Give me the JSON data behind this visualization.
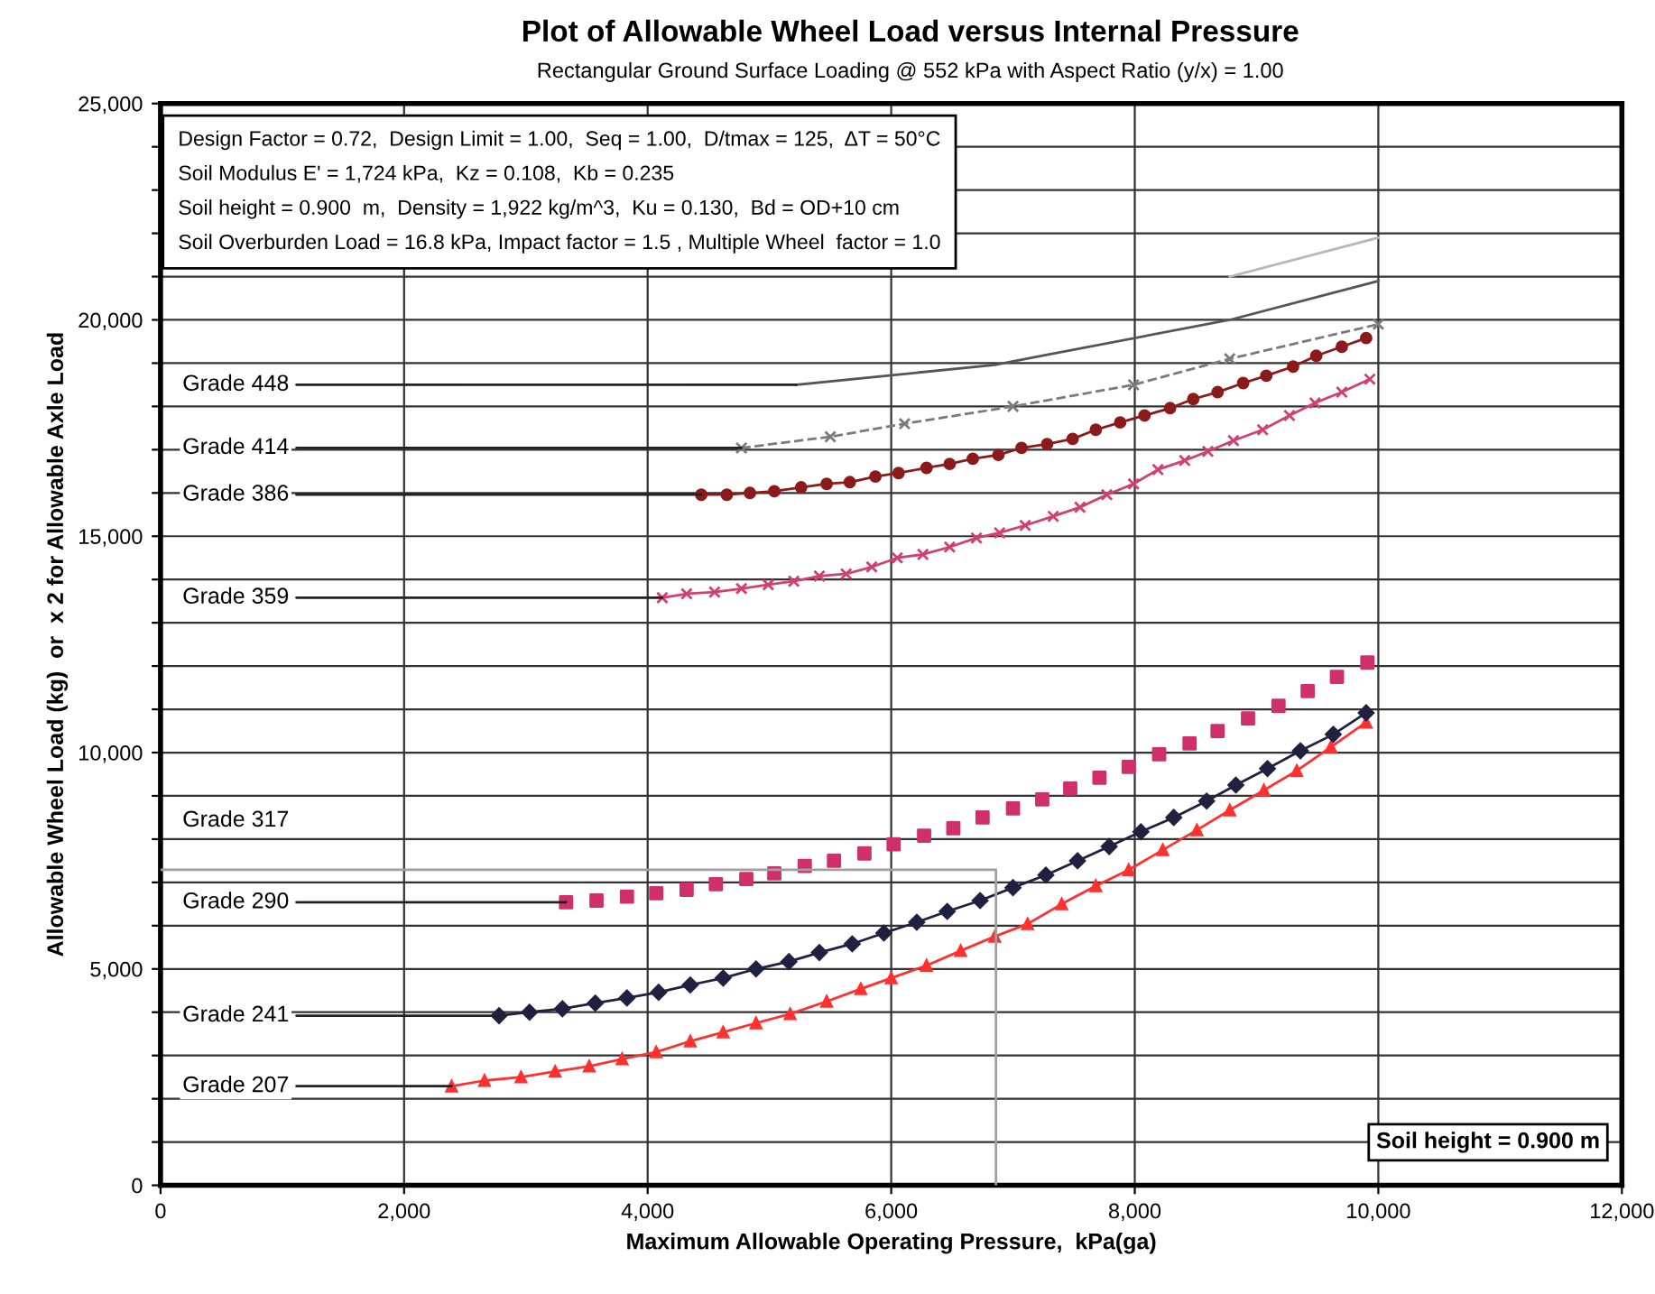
{
  "chart_data": {
    "type": "line",
    "title": "Plot of Allowable Wheel Load versus Internal Pressure",
    "subtitle": "Rectangular Ground Surface Loading @ 552 kPa with Aspect Ratio (y/x) = 1.00",
    "xlabel": "Maximum Allowable Operating Pressure,  kPa(ga)",
    "ylabel": "Allowable Wheel Load (kg)  or  x 2 for Allowable Axle Load",
    "xlim": [
      0,
      12000
    ],
    "ylim": [
      0,
      25000
    ],
    "xticks": [
      {
        "value": 0,
        "label": "0"
      },
      {
        "value": 2000,
        "label": "2,000"
      },
      {
        "value": 4000,
        "label": "4,000"
      },
      {
        "value": 6000,
        "label": "6,000"
      },
      {
        "value": 8000,
        "label": "8,000"
      },
      {
        "value": 10000,
        "label": "10,000"
      },
      {
        "value": 12000,
        "label": "12,000"
      }
    ],
    "yticks": [
      {
        "value": 0,
        "label": "0"
      },
      {
        "value": 1000,
        "label": null
      },
      {
        "value": 2000,
        "label": null
      },
      {
        "value": 3000,
        "label": null
      },
      {
        "value": 4000,
        "label": null
      },
      {
        "value": 5000,
        "label": "5,000"
      },
      {
        "value": 6000,
        "label": null
      },
      {
        "value": 7000,
        "label": null
      },
      {
        "value": 8000,
        "label": null
      },
      {
        "value": 9000,
        "label": null
      },
      {
        "value": 10000,
        "label": "10,000"
      },
      {
        "value": 11000,
        "label": null
      },
      {
        "value": 12000,
        "label": null
      },
      {
        "value": 13000,
        "label": null
      },
      {
        "value": 14000,
        "label": null
      },
      {
        "value": 15000,
        "label": "15,000"
      },
      {
        "value": 16000,
        "label": null
      },
      {
        "value": 17000,
        "label": null
      },
      {
        "value": 18000,
        "label": null
      },
      {
        "value": 19000,
        "label": null
      },
      {
        "value": 20000,
        "label": "20,000"
      },
      {
        "value": 21000,
        "label": null
      },
      {
        "value": 22000,
        "label": null
      },
      {
        "value": 23000,
        "label": null
      },
      {
        "value": 24000,
        "label": null
      },
      {
        "value": 25000,
        "label": "25,000"
      }
    ],
    "grid": true,
    "legend": false,
    "series": [
      {
        "color": "#ff3030",
        "marker": "triangle",
        "x": [
          2390,
          2660,
          2960,
          3240,
          3520,
          3790,
          4070,
          4350,
          4620,
          4890,
          5170,
          5470,
          5750,
          6000,
          6290,
          6570,
          6850,
          7120,
          7400,
          7680,
          7950,
          8230,
          8510,
          8780,
          9060,
          9330,
          9610,
          9900
        ],
        "values": [
          2290,
          2420,
          2500,
          2630,
          2750,
          2920,
          3080,
          3330,
          3540,
          3750,
          3960,
          4250,
          4540,
          4790,
          5080,
          5420,
          5750,
          6040,
          6500,
          6920,
          7290,
          7750,
          8210,
          8670,
          9130,
          9580,
          10130,
          10700
        ]
      },
      {
        "color": "#202040",
        "marker": "diamond",
        "x": [
          2780,
          3030,
          3300,
          3570,
          3830,
          4090,
          4350,
          4620,
          4890,
          5160,
          5410,
          5680,
          5940,
          6210,
          6460,
          6730,
          7000,
          7270,
          7530,
          7790,
          8050,
          8320,
          8590,
          8830,
          9090,
          9360,
          9630,
          9900
        ],
        "values": [
          3920,
          4000,
          4080,
          4210,
          4330,
          4460,
          4630,
          4790,
          5000,
          5170,
          5380,
          5580,
          5830,
          6080,
          6330,
          6580,
          6880,
          7170,
          7500,
          7830,
          8170,
          8500,
          8880,
          9250,
          9630,
          10040,
          10420,
          10920
        ]
      },
      {
        "color": "#d0306a",
        "type": "scatter",
        "marker": "square",
        "x": [
          3330,
          3580,
          3830,
          4070,
          4320,
          4560,
          4810,
          5040,
          5290,
          5530,
          5780,
          6020,
          6270,
          6510,
          6750,
          7000,
          7240,
          7470,
          7710,
          7950,
          8200,
          8450,
          8680,
          8930,
          9180,
          9420,
          9660,
          9910
        ],
        "values": [
          6540,
          6580,
          6670,
          6750,
          6830,
          6960,
          7080,
          7210,
          7380,
          7500,
          7670,
          7880,
          8080,
          8250,
          8500,
          8710,
          8920,
          9170,
          9420,
          9670,
          9960,
          10210,
          10500,
          10790,
          11080,
          11420,
          11750,
          12080
        ]
      },
      {
        "color": "#d04070",
        "marker": "cross",
        "x": [
          4120,
          4320,
          4550,
          4770,
          4990,
          5200,
          5410,
          5630,
          5840,
          6050,
          6260,
          6480,
          6700,
          6890,
          7100,
          7330,
          7550,
          7770,
          7990,
          8190,
          8410,
          8600,
          8810,
          9050,
          9270,
          9480,
          9700,
          9930
        ],
        "values": [
          13580,
          13670,
          13710,
          13790,
          13880,
          13960,
          14080,
          14130,
          14290,
          14500,
          14580,
          14750,
          14960,
          15080,
          15250,
          15460,
          15670,
          15960,
          16210,
          16540,
          16750,
          16960,
          17210,
          17460,
          17790,
          18080,
          18330,
          18630
        ]
      },
      {
        "color": "#8b1a1a",
        "marker": "circle",
        "x": [
          4440,
          4650,
          4840,
          5040,
          5260,
          5470,
          5660,
          5870,
          6060,
          6290,
          6480,
          6670,
          6880,
          7070,
          7280,
          7490,
          7680,
          7880,
          8080,
          8290,
          8480,
          8680,
          8890,
          9080,
          9300,
          9490,
          9700,
          9900
        ],
        "values": [
          15960,
          15960,
          16000,
          16040,
          16130,
          16210,
          16250,
          16380,
          16460,
          16580,
          16670,
          16790,
          16880,
          17040,
          17130,
          17250,
          17460,
          17630,
          17790,
          17960,
          18170,
          18330,
          18540,
          18710,
          18920,
          19170,
          19380,
          19580
        ]
      },
      {
        "color": "#7a7a7a",
        "marker": "cross",
        "line_style": "dashed",
        "x": [
          4770,
          5500,
          6110,
          7000,
          7990,
          8780,
          10000
        ],
        "values": [
          17040,
          17300,
          17600,
          18000,
          18500,
          19100,
          19900
        ]
      },
      {
        "color": "#555555",
        "marker": "none",
        "x": [
          5220,
          6850,
          7290,
          8780,
          10000
        ],
        "values": [
          18500,
          18960,
          19200,
          20000,
          20900
        ]
      },
      {
        "color": "#b8b8b8",
        "marker": "none",
        "x": [
          8780,
          10000
        ],
        "values": [
          21000,
          21900
        ]
      },
      {
        "color": "#a0a0a0",
        "marker": "none",
        "x": [
          0,
          6860,
          6860
        ],
        "values": [
          7290,
          7290,
          0
        ]
      }
    ],
    "annotations": [
      {
        "text": "Grade 448",
        "x": 5220,
        "y": 18500
      },
      {
        "text": "Grade 414",
        "x": 4770,
        "y": 17040
      },
      {
        "text": "Grade 386",
        "x": 4440,
        "y": 15960
      },
      {
        "text": "Grade 359",
        "x": 4120,
        "y": 13580
      },
      {
        "text": "Grade 290",
        "x": 3330,
        "y": 6540
      },
      {
        "text": "Grade 241",
        "x": 2780,
        "y": 3920
      },
      {
        "text": "Grade 207",
        "x": 2390,
        "y": 2290
      },
      "Grade 317",
      "Design Factor = 0.72,  Design Limit = 1.00,  Seq = 1.00,  D/tmax = 125,  ΔT = 50°C",
      "Soil Modulus E' = 1,724 kPa,  Kz = 0.108,  Kb = 0.235",
      "Soil height = 0.900  m,  Density = 1,922 kg/m^3,  Ku = 0.130,  Bd = OD+10 cm",
      "Soil Overburden Load = 16.8 kPa, Impact factor = 1.5 , Multiple Wheel  factor = 1.0",
      "Soil height = 0.900 m"
    ]
  }
}
